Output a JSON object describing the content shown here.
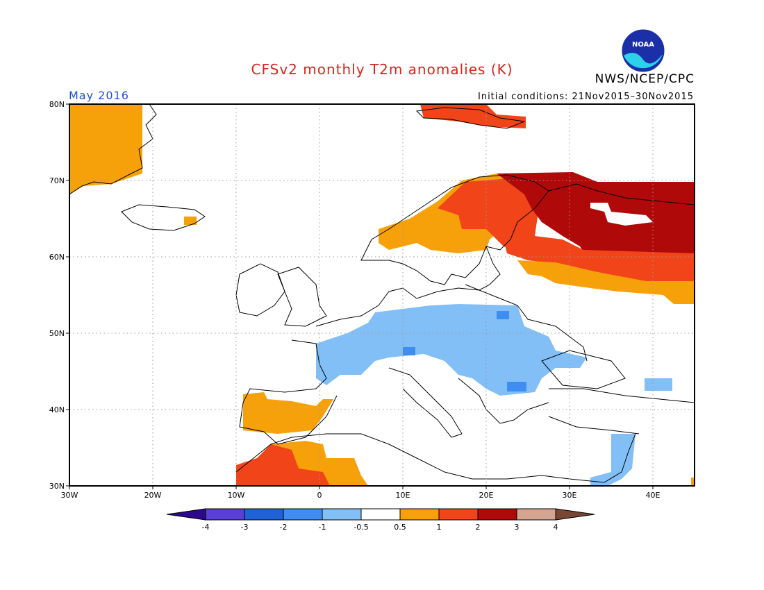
{
  "header": {
    "title": "CFSv2 monthly T2m anomalies (K)",
    "month": "May 2016",
    "initial_conditions": "Initial conditions: 21Nov2015–30Nov2015",
    "organization": "NWS/NCEP/CPC",
    "logo_text": "NOAA"
  },
  "map": {
    "lat_labels": [
      "80N",
      "70N",
      "60N",
      "50N",
      "40N",
      "30N"
    ],
    "lon_labels": [
      "30W",
      "20W",
      "10W",
      "0",
      "10E",
      "20E",
      "30E",
      "40E"
    ]
  },
  "legend": {
    "labels": [
      "-4",
      "-3",
      "-2",
      "-1",
      "-0.5",
      "0.5",
      "1",
      "2",
      "3",
      "4"
    ],
    "colors": [
      "#2a0a8a",
      "#5a3fd6",
      "#1f62d6",
      "#3d8ef0",
      "#82bff7",
      "#ffffff",
      "#f7a10a",
      "#f24419",
      "#b00909",
      "#d6a592",
      "#7a4634"
    ]
  },
  "chart_data": {
    "type": "heatmap",
    "title": "CFSv2 monthly T2m anomalies (K)",
    "xlim": [
      -30,
      45
    ],
    "ylim": [
      30,
      80
    ],
    "regions": [
      {
        "area": "Greenland",
        "category": "0.5 to 1"
      },
      {
        "area": "Svalbard",
        "category": "1 to 2"
      },
      {
        "area": "Norway coast",
        "category": "0.5 to 2"
      },
      {
        "area": "Finland / NW Russia",
        "category": "2 to 3"
      },
      {
        "area": "Western Russia",
        "category": "1 to 2"
      },
      {
        "area": "Central Europe",
        "category": "-1 to -0.5"
      },
      {
        "area": "Iberia",
        "category": "0.5 to 1"
      },
      {
        "area": "Morocco",
        "category": "1 to 2"
      }
    ]
  }
}
